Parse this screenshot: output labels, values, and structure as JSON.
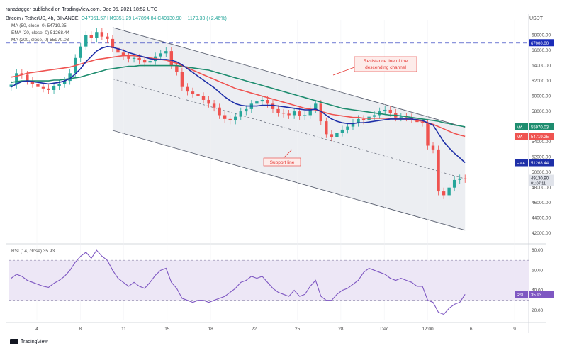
{
  "header": {
    "publisher": "ranadagger published on TradingView.com, Dec 05, 2021 18:52 UTC",
    "symbol": "Bitcoin / TetherUS, 4h, BINANCE",
    "ohlc": "O47951.57 H49351.29 L47894.84 C49130.90",
    "change": "+1179.33 (+2.46%)",
    "quote_currency": "USDT"
  },
  "indicators": {
    "ma50": "MA (50, close, 0)  54719.25",
    "ema20": "EMA (20, close, 0)  51268.44",
    "ma200": "MA (200, close, 0)  55970.03",
    "rsi": "RSI (14, close)  35.93"
  },
  "annotations": {
    "resistance": [
      "Resistance line of the",
      "descending channel"
    ],
    "support": "Support line"
  },
  "footer": {
    "brand": "TradingView"
  },
  "colors": {
    "up": "#26a69a",
    "down": "#ef5350",
    "ma50": "#ef5350",
    "ema20": "#1e2fa8",
    "ma200": "#1d8c6e",
    "rsi": "#7e57c2",
    "rsi_band": "#ede7f6",
    "hline": "#1a2bb8",
    "channel_fill": "#eceef2",
    "annotation": "#e53935"
  },
  "chart_data": {
    "type": "candlestick",
    "title": "Bitcoin / TetherUS, 4h, BINANCE",
    "x_ticks": [
      "4",
      "8",
      "11",
      "15",
      "18",
      "22",
      "25",
      "28",
      "Dec",
      "12:00",
      "6",
      "9"
    ],
    "y_ticks": [
      42000,
      44000,
      46000,
      48000,
      50000,
      52000,
      54000,
      56000,
      58000,
      60000,
      62000,
      64000,
      66000,
      68000
    ],
    "ylim": [
      41000,
      70000
    ],
    "horizontal_level": 67000,
    "price_labels": [
      {
        "label": "MA",
        "value": 55970.03
      },
      {
        "label": "MA",
        "value": 54719.25
      },
      {
        "label": "EMA",
        "value": 51268.44
      },
      {
        "label": "",
        "value": 49130.9,
        "sub": "01:07:11"
      }
    ],
    "series_close": [
      61500,
      63000,
      62800,
      62000,
      61600,
      61200,
      61000,
      60800,
      61300,
      61600,
      62000,
      63000,
      65000,
      66500,
      68000,
      67600,
      68400,
      67800,
      67500,
      66300,
      65700,
      65300,
      64900,
      65000,
      64700,
      64400,
      64600,
      65200,
      65600,
      65900,
      64000,
      63200,
      61200,
      60600,
      60300,
      60000,
      59500,
      59000,
      58500,
      57500,
      57000,
      56800,
      57300,
      58000,
      58300,
      59000,
      59300,
      59500,
      59000,
      58300,
      57800,
      57700,
      57500,
      58000,
      57400,
      57500,
      58300,
      59000,
      56700,
      55000,
      54600,
      55200,
      55600,
      56000,
      56500,
      57000,
      56800,
      57300,
      57500,
      58000,
      58200,
      57800,
      57200,
      57300,
      57200,
      57000,
      56600,
      56500,
      53500,
      53000,
      47500,
      47000,
      48000,
      49000,
      49200,
      49130
    ],
    "ema20": [
      61200,
      61600,
      61900,
      62000,
      61900,
      61800,
      61700,
      61600,
      61700,
      61800,
      62000,
      62300,
      62900,
      63600,
      64500,
      65200,
      65900,
      66300,
      66500,
      66400,
      66200,
      66000,
      65700,
      65500,
      65300,
      65100,
      64900,
      64800,
      64800,
      64800,
      64700,
      64500,
      64100,
      63600,
      63100,
      62600,
      62100,
      61600,
      61100,
      60500,
      59900,
      59400,
      59000,
      58800,
      58700,
      58700,
      58700,
      58800,
      58800,
      58800,
      58700,
      58600,
      58500,
      58400,
      58300,
      58200,
      58200,
      58300,
      58000,
      57500,
      57000,
      56700,
      56500,
      56400,
      56400,
      56500,
      56500,
      56600,
      56700,
      56800,
      56900,
      57000,
      57000,
      57000,
      57000,
      57000,
      56900,
      56800,
      56500,
      56200,
      55100,
      54000,
      53200,
      52500,
      51900,
      51268
    ],
    "ma50": [
      62500,
      62600,
      62800,
      63000,
      63100,
      63200,
      63300,
      63400,
      63500,
      63600,
      63700,
      63800,
      64000,
      64200,
      64400,
      64600,
      64800,
      64900,
      65000,
      65100,
      65200,
      65300,
      65300,
      65300,
      65200,
      65100,
      65000,
      64900,
      64800,
      64700,
      64500,
      64300,
      64000,
      63700,
      63400,
      63100,
      62800,
      62500,
      62200,
      61900,
      61600,
      61300,
      61000,
      60800,
      60600,
      60400,
      60200,
      60000,
      59800,
      59600,
      59400,
      59200,
      59000,
      58800,
      58600,
      58400,
      58300,
      58200,
      58000,
      57800,
      57600,
      57500,
      57400,
      57300,
      57200,
      57200,
      57100,
      57100,
      57100,
      57100,
      57100,
      57100,
      57000,
      57000,
      57000,
      56900,
      56800,
      56700,
      56500,
      56300,
      56000,
      55700,
      55400,
      55100,
      54900,
      54719
    ],
    "ma200": [
      61800,
      61900,
      62000,
      62000,
      62000,
      62000,
      62000,
      62000,
      62100,
      62100,
      62200,
      62300,
      62400,
      62500,
      62700,
      62900,
      63100,
      63300,
      63500,
      63600,
      63700,
      63800,
      63900,
      63900,
      64000,
      64000,
      64000,
      64000,
      64000,
      64000,
      64000,
      64000,
      63900,
      63800,
      63700,
      63600,
      63500,
      63400,
      63200,
      63000,
      62800,
      62600,
      62400,
      62200,
      62000,
      61800,
      61600,
      61400,
      61200,
      61000,
      60800,
      60600,
      60400,
      60200,
      60000,
      59800,
      59600,
      59400,
      59200,
      59000,
      58800,
      58600,
      58400,
      58300,
      58200,
      58100,
      58000,
      57900,
      57800,
      57700,
      57600,
      57500,
      57500,
      57400,
      57300,
      57200,
      57100,
      57000,
      56900,
      56800,
      56700,
      56500,
      56400,
      56200,
      56100,
      55970
    ],
    "rsi": {
      "ylim": [
        10,
        85
      ],
      "y_ticks": [
        20,
        40,
        60,
        80
      ],
      "bands": [
        30,
        70
      ],
      "values": [
        52,
        56,
        54,
        50,
        48,
        46,
        44,
        43,
        47,
        50,
        54,
        60,
        68,
        74,
        78,
        72,
        80,
        74,
        70,
        60,
        52,
        48,
        44,
        48,
        44,
        42,
        48,
        55,
        60,
        62,
        48,
        42,
        32,
        30,
        28,
        30,
        30,
        28,
        30,
        32,
        34,
        38,
        42,
        48,
        50,
        54,
        52,
        54,
        48,
        42,
        38,
        36,
        34,
        40,
        34,
        36,
        44,
        50,
        34,
        30,
        30,
        36,
        40,
        42,
        46,
        50,
        58,
        62,
        60,
        58,
        56,
        52,
        50,
        52,
        50,
        48,
        44,
        44,
        30,
        28,
        18,
        16,
        22,
        26,
        28,
        36
      ]
    },
    "last": {
      "rsi": 35.93
    }
  }
}
